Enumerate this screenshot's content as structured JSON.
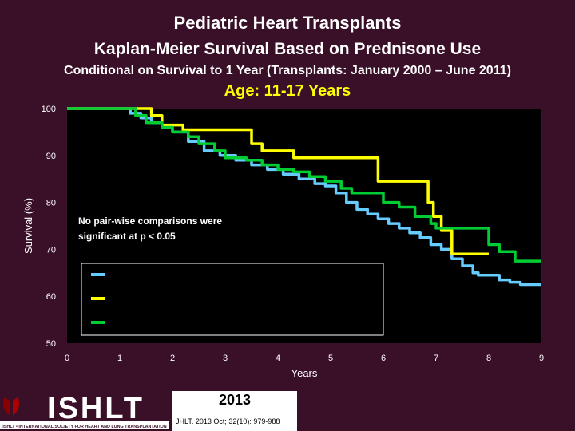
{
  "header": {
    "title": "Pediatric Heart Transplants",
    "subtitle": "Kaplan-Meier Survival Based on Prednisone Use",
    "condition": "Conditional on Survival to 1 Year (Transplants: January 2000 – June 2011)",
    "age_group": "Age: 11-17 Years"
  },
  "chart_data": {
    "type": "line",
    "step": true,
    "xlabel": "Years",
    "ylabel": "Survival (%)",
    "xlim": [
      0,
      9
    ],
    "ylim": [
      50,
      100
    ],
    "x_ticks": [
      0,
      1,
      2,
      3,
      4,
      5,
      6,
      7,
      8,
      9
    ],
    "y_ticks": [
      50,
      60,
      70,
      80,
      90,
      100
    ],
    "annotation": "No pair-wise comparisons were significant at p < 0.05",
    "legend_entries": [
      "",
      "",
      ""
    ],
    "series": [
      {
        "name": "series-cyan",
        "color": "#66ccff",
        "x": [
          0,
          1.0,
          1.2,
          1.4,
          1.6,
          1.8,
          2.0,
          2.3,
          2.6,
          2.9,
          3.2,
          3.5,
          3.8,
          4.1,
          4.4,
          4.7,
          4.9,
          5.1,
          5.3,
          5.5,
          5.7,
          5.9,
          6.1,
          6.3,
          6.5,
          6.7,
          6.9,
          7.1,
          7.3,
          7.5,
          7.7,
          7.8,
          8.0,
          8.2,
          8.4,
          8.6,
          8.8,
          9.0
        ],
        "y": [
          100,
          100,
          99,
          98,
          97,
          96,
          95,
          93,
          91,
          90,
          89,
          88,
          87,
          86,
          85,
          84,
          83.5,
          82,
          80,
          78.5,
          77.5,
          76.5,
          75.5,
          74.5,
          73.5,
          72.5,
          71,
          70,
          68,
          66.5,
          65,
          64.5,
          64.5,
          63.5,
          63,
          62.5,
          62.5,
          62.5
        ]
      },
      {
        "name": "series-yellow",
        "color": "#ffff00",
        "x": [
          0,
          1.35,
          1.6,
          1.8,
          2.2,
          3.2,
          3.5,
          3.7,
          4.0,
          4.3,
          5.6,
          5.9,
          6.5,
          6.85,
          6.95,
          7.1,
          7.3,
          8.0
        ],
        "y": [
          100,
          100,
          98.5,
          96.5,
          95.5,
          95.5,
          92.5,
          91,
          91,
          89.5,
          89.5,
          84.5,
          84.5,
          80,
          77,
          74,
          69,
          69
        ]
      },
      {
        "name": "series-green",
        "color": "#00cc33",
        "x": [
          0,
          1.1,
          1.3,
          1.5,
          1.8,
          2.0,
          2.3,
          2.5,
          2.8,
          3.0,
          3.4,
          3.7,
          4.0,
          4.3,
          4.6,
          4.9,
          5.2,
          5.4,
          5.7,
          6.0,
          6.3,
          6.6,
          6.9,
          7.0,
          7.3,
          7.5,
          8.0,
          8.2,
          8.5,
          9.0
        ],
        "y": [
          100,
          100,
          98.5,
          97,
          96,
          95,
          94,
          92.5,
          91,
          89.5,
          89,
          88,
          87,
          86.5,
          85.5,
          84.5,
          83,
          82,
          82,
          80,
          79,
          77,
          75.5,
          74.5,
          74.5,
          74.5,
          71,
          69.5,
          67.5,
          67.5
        ]
      }
    ]
  },
  "footer": {
    "logo_text": "ISHLT",
    "logo_tagline": "ISHLT • INTERNATIONAL SOCIETY FOR HEART AND LUNG TRANSPLANTATION",
    "year": "2013",
    "citation": "JHLT. 2013 Oct; 32(10): 979-988"
  },
  "colors": {
    "background": "#3a0f28",
    "plot_background": "#000000",
    "accent_yellow": "#ffff00"
  }
}
